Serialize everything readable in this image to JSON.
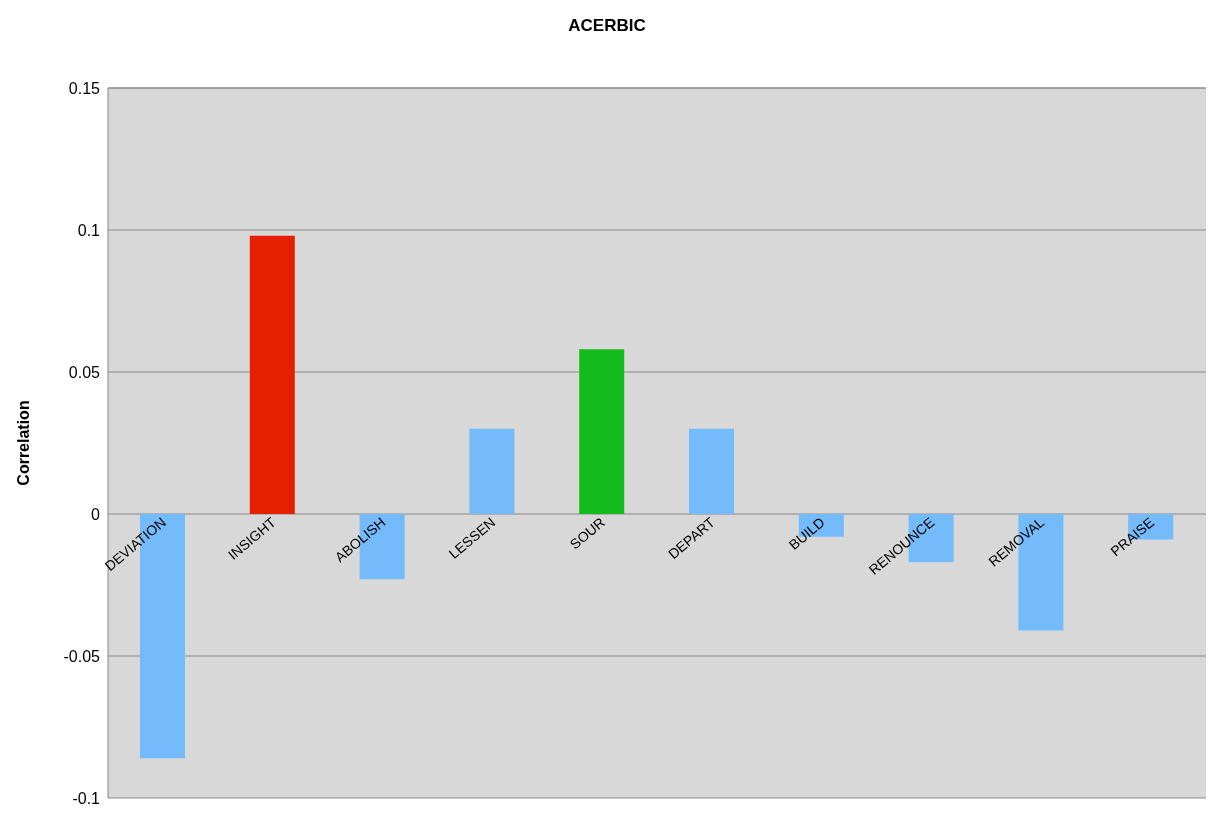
{
  "chart_data": {
    "type": "bar",
    "title": "ACERBIC",
    "ylabel": "Correlation",
    "categories": [
      "DEVIATION",
      "INSIGHT",
      "ABOLISH",
      "LESSEN",
      "SOUR",
      "DEPART",
      "BUILD",
      "RENOUNCE",
      "REMOVAL",
      "PRAISE"
    ],
    "values": [
      -0.086,
      0.098,
      -0.023,
      0.03,
      0.058,
      0.03,
      -0.008,
      -0.017,
      -0.041,
      -0.009
    ],
    "colors": [
      "#73bbfb",
      "#e52000",
      "#73bbfb",
      "#73bbfb",
      "#14bb1c",
      "#73bbfb",
      "#73bbfb",
      "#73bbfb",
      "#73bbfb",
      "#73bbfb"
    ],
    "ylim": [
      -0.1,
      0.15
    ],
    "yticks": [
      -0.1,
      -0.05,
      0,
      0.05,
      0.1,
      0.15
    ],
    "grid": "y"
  }
}
